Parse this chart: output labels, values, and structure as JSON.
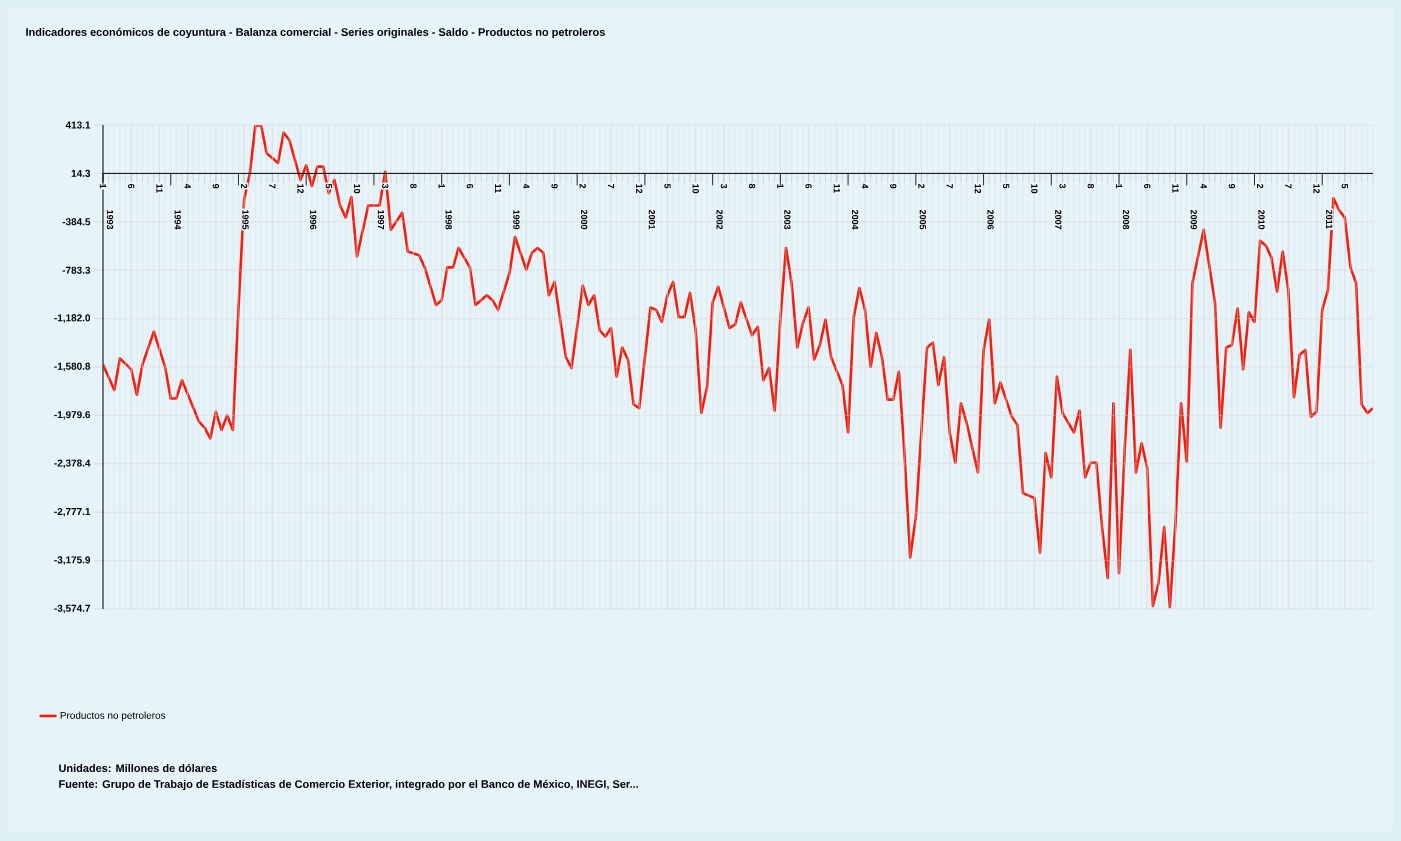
{
  "chart_data": {
    "type": "line",
    "title": "Indicadores económicos de coyuntura - Balanza comercial - Series originales - Saldo - Productos no petroleros",
    "annotations": [
      "Unidades: Millones de dólares",
      "Fuente: Grupo de Trabajo de Estadísticas de Comercio Exterior, integrado por el Banco de México, INEGI, Ser..."
    ],
    "x": [
      "1993-01",
      "1993-03",
      "1993-04",
      "1993-06",
      "1993-07",
      "1993-08",
      "1993-10",
      "1993-12",
      "1994-01",
      "1994-02",
      "1994-03",
      "1994-06",
      "1994-07",
      "1994-08",
      "1994-09",
      "1994-10",
      "1994-11",
      "1994-12",
      "1995-01",
      "1995-02",
      "1995-03",
      "1995-04",
      "1995-05",
      "1995-06",
      "1995-08",
      "1995-09",
      "1995-10",
      "1995-12",
      "1996-01",
      "1996-02",
      "1996-03",
      "1996-04",
      "1996-05",
      "1996-06",
      "1996-07",
      "1996-08",
      "1996-09",
      "1996-10",
      "1996-12",
      "1997-02",
      "1997-03",
      "1997-04",
      "1997-06",
      "1997-07",
      "1997-09",
      "1997-10",
      "1997-12",
      "1998-01",
      "1998-02",
      "1998-03",
      "1998-04",
      "1998-06",
      "1998-07",
      "1998-09",
      "1998-10",
      "1998-11",
      "1999-01",
      "1999-02",
      "1999-04",
      "1999-05",
      "1999-06",
      "1999-07",
      "1999-08",
      "1999-09",
      "1999-11",
      "1999-12",
      "2000-02",
      "2000-03",
      "2000-04",
      "2000-05",
      "2000-06",
      "2000-07",
      "2000-08",
      "2000-09",
      "2000-10",
      "2000-11",
      "2000-12",
      "2001-02",
      "2001-03",
      "2001-04",
      "2001-05",
      "2001-06",
      "2001-07",
      "2001-08",
      "2001-09",
      "2001-10",
      "2001-11",
      "2001-12",
      "2002-01",
      "2002-02",
      "2002-03",
      "2002-04",
      "2002-05",
      "2002-06",
      "2002-08",
      "2002-09",
      "2002-10",
      "2002-11",
      "2002-12",
      "2003-01",
      "2003-02",
      "2003-03",
      "2003-04",
      "2003-05",
      "2003-06",
      "2003-07",
      "2003-08",
      "2003-09",
      "2003-10",
      "2003-12",
      "2004-01",
      "2004-02",
      "2004-03",
      "2004-04",
      "2004-05",
      "2004-06",
      "2004-07",
      "2004-08",
      "2004-09",
      "2004-10",
      "2004-11",
      "2004-12",
      "2005-01",
      "2005-02",
      "2005-03",
      "2005-04",
      "2005-05",
      "2005-06",
      "2005-07",
      "2005-08",
      "2005-09",
      "2005-10",
      "2005-12",
      "2006-01",
      "2006-02",
      "2006-03",
      "2006-04",
      "2006-06",
      "2006-07",
      "2006-08",
      "2006-10",
      "2006-11",
      "2006-12",
      "2007-01",
      "2007-02",
      "2007-03",
      "2007-05",
      "2007-06",
      "2007-07",
      "2007-08",
      "2007-09",
      "2007-10",
      "2007-11",
      "2007-12",
      "2008-01",
      "2008-02",
      "2008-03",
      "2008-04",
      "2008-05",
      "2008-06",
      "2008-07",
      "2008-08",
      "2008-09",
      "2008-10",
      "2008-11",
      "2008-12",
      "2009-01",
      "2009-02",
      "2009-04",
      "2009-06",
      "2009-07",
      "2009-08",
      "2009-09",
      "2009-10",
      "2009-11",
      "2009-12",
      "2010-01",
      "2010-02",
      "2010-03",
      "2010-04",
      "2010-05",
      "2010-06",
      "2010-07",
      "2010-08",
      "2010-09",
      "2010-10",
      "2010-11",
      "2010-12",
      "2011-01",
      "2011-02",
      "2011-03",
      "2011-04",
      "2011-05",
      "2011-06",
      "2011-07",
      "2011-08",
      "2011-09",
      "2011-10"
    ],
    "series": [
      {
        "name": "Productos no petroleros",
        "color": "#f02010",
        "values": [
          -1560,
          -1770,
          -1510,
          -1600,
          -1810,
          -1560,
          -1290,
          -1580,
          -1840,
          -1840,
          -1690,
          -2030,
          -2080,
          -2170,
          -1950,
          -2100,
          -1980,
          -2100,
          -1100,
          -200,
          10,
          410,
          410,
          180,
          100,
          350,
          290,
          -40,
          80,
          -90,
          70,
          70,
          -150,
          -40,
          -250,
          -350,
          -180,
          -670,
          -250,
          -250,
          30,
          -450,
          -310,
          -630,
          -660,
          -760,
          -1070,
          -1030,
          -760,
          -760,
          -600,
          -760,
          -1070,
          -990,
          -1030,
          -1110,
          -810,
          -510,
          -780,
          -640,
          -600,
          -640,
          -990,
          -880,
          -1500,
          -1590,
          -910,
          -1070,
          -990,
          -1280,
          -1330,
          -1260,
          -1660,
          -1420,
          -1520,
          -1890,
          -1920,
          -1090,
          -1110,
          -1210,
          -990,
          -880,
          -1170,
          -1170,
          -970,
          -1280,
          -1960,
          -1750,
          -1050,
          -920,
          -1090,
          -1260,
          -1230,
          -1050,
          -1320,
          -1250,
          -1690,
          -1590,
          -1940,
          -1190,
          -600,
          -890,
          -1420,
          -1220,
          -1090,
          -1520,
          -1400,
          -1190,
          -1500,
          -1730,
          -2120,
          -1170,
          -930,
          -1110,
          -1580,
          -1300,
          -1500,
          -1850,
          -1850,
          -1620,
          -2300,
          -3150,
          -2820,
          -2100,
          -1420,
          -1380,
          -1730,
          -1500,
          -2120,
          -2370,
          -1880,
          -2040,
          -2450,
          -1440,
          -1190,
          -1880,
          -1710,
          -1990,
          -2060,
          -2620,
          -2660,
          -3110,
          -2290,
          -2490,
          -1660,
          -1960,
          -2120,
          -1940,
          -2490,
          -2370,
          -2370,
          -2900,
          -3320,
          -1880,
          -3280,
          -2270,
          -1440,
          -2450,
          -2210,
          -2410,
          -3550,
          -3360,
          -2900,
          -3560,
          -2870,
          -1880,
          -2360,
          -890,
          -450,
          -1050,
          -2080,
          -1420,
          -1400,
          -1100,
          -1600,
          -1130,
          -1210,
          -540,
          -580,
          -680,
          -960,
          -630,
          -950,
          -1830,
          -1480,
          -1440,
          -1990,
          -1950,
          -1110,
          -950,
          -190,
          -290,
          -350,
          -760,
          -890,
          -1890,
          -1960,
          -1920
        ]
      }
    ],
    "xlim": [
      "1993-01",
      "2011-10"
    ],
    "xticks": [
      {
        "value": "1993-01",
        "label": "1"
      },
      {
        "value": "1993-06",
        "label": "6"
      },
      {
        "value": "1993-11",
        "label": "11"
      },
      {
        "value": "1994-04",
        "label": "4"
      },
      {
        "value": "1994-09",
        "label": "9"
      },
      {
        "value": "1995-02",
        "label": "2"
      },
      {
        "value": "1995-07",
        "label": "7"
      },
      {
        "value": "1995-12",
        "label": "12"
      },
      {
        "value": "1996-05",
        "label": "5"
      },
      {
        "value": "1996-10",
        "label": "10"
      },
      {
        "value": "1997-03",
        "label": "3"
      },
      {
        "value": "1997-08",
        "label": "8"
      },
      {
        "value": "1998-01",
        "label": "1"
      },
      {
        "value": "1998-06",
        "label": "6"
      },
      {
        "value": "1998-11",
        "label": "11"
      },
      {
        "value": "1999-04",
        "label": "4"
      },
      {
        "value": "1999-09",
        "label": "9"
      },
      {
        "value": "2000-02",
        "label": "2"
      },
      {
        "value": "2000-07",
        "label": "7"
      },
      {
        "value": "2000-12",
        "label": "12"
      },
      {
        "value": "2001-05",
        "label": "5"
      },
      {
        "value": "2001-10",
        "label": "10"
      },
      {
        "value": "2002-03",
        "label": "3"
      },
      {
        "value": "2002-08",
        "label": "8"
      },
      {
        "value": "2003-01",
        "label": "1"
      },
      {
        "value": "2003-06",
        "label": "6"
      },
      {
        "value": "2003-11",
        "label": "11"
      },
      {
        "value": "2004-04",
        "label": "4"
      },
      {
        "value": "2004-09",
        "label": "9"
      },
      {
        "value": "2005-02",
        "label": "2"
      },
      {
        "value": "2005-07",
        "label": "7"
      },
      {
        "value": "2005-12",
        "label": "12"
      },
      {
        "value": "2006-05",
        "label": "5"
      },
      {
        "value": "2006-10",
        "label": "10"
      },
      {
        "value": "2007-03",
        "label": "3"
      },
      {
        "value": "2007-08",
        "label": "8"
      },
      {
        "value": "2008-01",
        "label": "1"
      },
      {
        "value": "2008-06",
        "label": "6"
      },
      {
        "value": "2008-11",
        "label": "11"
      },
      {
        "value": "2009-04",
        "label": "4"
      },
      {
        "value": "2009-09",
        "label": "9"
      },
      {
        "value": "2010-02",
        "label": "2"
      },
      {
        "value": "2010-07",
        "label": "7"
      },
      {
        "value": "2010-12",
        "label": "12"
      },
      {
        "value": "2011-05",
        "label": "5"
      }
    ],
    "x2lim": [
      "1993-01",
      "2011-10"
    ],
    "x2ticks": [
      {
        "value": "1993-01",
        "label": "1993"
      },
      {
        "value": "1994-01",
        "label": "1994"
      },
      {
        "value": "1995-01",
        "label": "1995"
      },
      {
        "value": "1996-01",
        "label": "1996"
      },
      {
        "value": "1997-01",
        "label": "1997"
      },
      {
        "value": "1998-01",
        "label": "1998"
      },
      {
        "value": "1999-01",
        "label": "1999"
      },
      {
        "value": "2000-01",
        "label": "2000"
      },
      {
        "value": "2001-01",
        "label": "2001"
      },
      {
        "value": "2002-01",
        "label": "2002"
      },
      {
        "value": "2003-01",
        "label": "2003"
      },
      {
        "value": "2004-01",
        "label": "2004"
      },
      {
        "value": "2005-01",
        "label": "2005"
      },
      {
        "value": "2006-01",
        "label": "2006"
      },
      {
        "value": "2007-01",
        "label": "2007"
      },
      {
        "value": "2008-01",
        "label": "2008"
      },
      {
        "value": "2009-01",
        "label": "2009"
      },
      {
        "value": "2010-01",
        "label": "2010"
      },
      {
        "value": "2011-01",
        "label": "2011"
      }
    ],
    "ylim": [
      -3574.7,
      413.1
    ],
    "yticks": [
      413.1,
      14.3,
      -384.5,
      -783.3,
      {
        "value": -1182.0,
        "label": "-1,182.0"
      },
      {
        "value": -1580.8,
        "label": "-1,580.8"
      },
      {
        "value": -1979.6,
        "label": "-1,979.6"
      },
      {
        "value": -2378.4,
        "label": "-2,378.4"
      },
      {
        "value": -2777.1,
        "label": "-2,777.1"
      },
      {
        "value": -3175.9,
        "label": "-3,175.9"
      },
      {
        "value": -3574.7,
        "label": "-3,574.7"
      }
    ],
    "grid": true,
    "legend": "bottom left"
  }
}
